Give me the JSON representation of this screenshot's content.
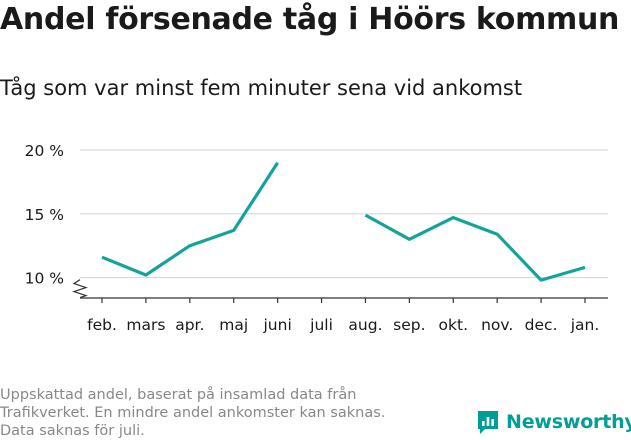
{
  "title": "Andel försenade tåg i Höörs kommun",
  "subtitle": "Tåg som var minst fem minuter sena vid ankomst",
  "footnote": [
    "Uppskattad andel, baserat på insamlad data från",
    "Trafikverket. En mindre andel ankomster kan saknas.",
    "Data saknas för juli."
  ],
  "brand": {
    "name": "Newsworthy",
    "icon": "newsworthy-logo-icon"
  },
  "colors": {
    "line": "#14a39a",
    "grid": "#d9d9d9",
    "axis": "#333333",
    "brand": "#009e96"
  },
  "chart_data": {
    "type": "line",
    "categories": [
      "feb.",
      "mars",
      "apr.",
      "maj",
      "juni",
      "juli",
      "aug.",
      "sep.",
      "okt.",
      "nov.",
      "dec.",
      "jan."
    ],
    "series": [
      {
        "values": [
          11.6,
          10.2,
          12.5,
          13.7,
          19.0,
          null,
          14.9,
          13.0,
          14.7,
          13.4,
          9.8,
          10.8
        ]
      }
    ],
    "yticks": [
      "10 %",
      "15 %",
      "20 %"
    ],
    "ytick_values": [
      10,
      15,
      20
    ],
    "ylim": [
      8.4,
      20
    ],
    "y_axis_break": true,
    "grid": true,
    "xlabel": "",
    "ylabel": ""
  }
}
